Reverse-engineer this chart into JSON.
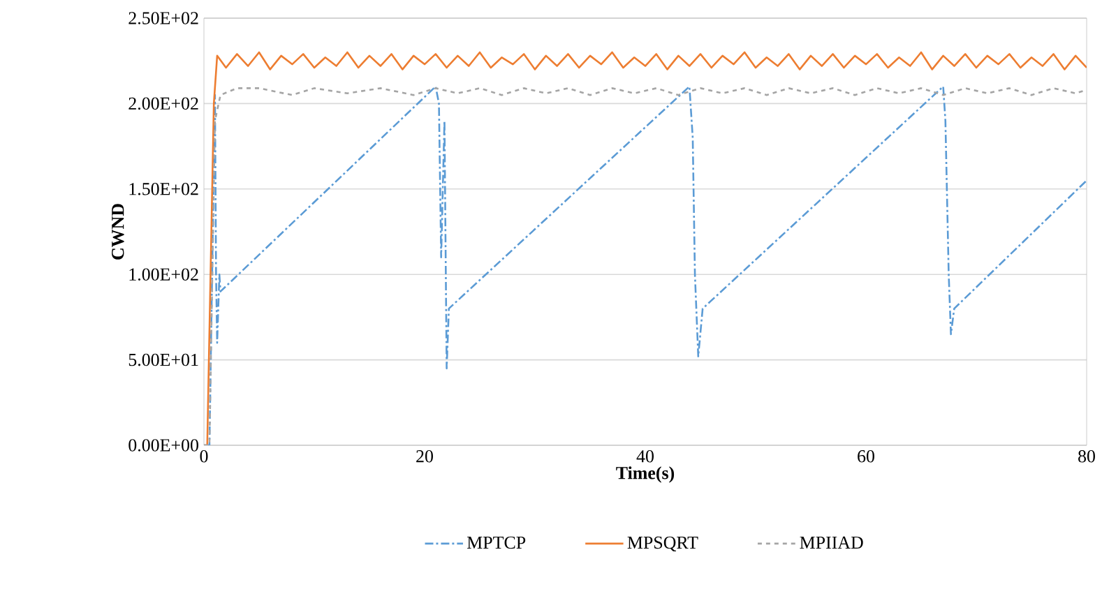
{
  "chart_data": {
    "type": "line",
    "xlabel": "Time(s)",
    "ylabel": "CWND",
    "xlim": [
      0,
      80
    ],
    "xticks": [
      0,
      20,
      40,
      60,
      80
    ],
    "ylim": [
      0,
      250
    ],
    "yticks": [
      {
        "value": 0,
        "label": "0.00E+00"
      },
      {
        "value": 50,
        "label": "5.00E+01"
      },
      {
        "value": 100,
        "label": "1.00E+02"
      },
      {
        "value": 150,
        "label": "1.50E+02"
      },
      {
        "value": 200,
        "label": "2.00E+02"
      },
      {
        "value": 250,
        "label": "2.50E+02"
      }
    ],
    "grid": "y",
    "legend": "bottom",
    "marker": "none",
    "series": [
      {
        "name": "MPTCP",
        "color": "#5b9bd5",
        "line_style": "dashdot",
        "x": [
          0,
          0.5,
          1,
          1.1,
          1.2,
          1.4,
          1.5,
          21,
          21.3,
          21.5,
          21.8,
          22,
          22.2,
          44,
          44.3,
          44.5,
          44.8,
          45.2,
          67,
          67.2,
          67.5,
          67.7,
          68,
          80
        ],
        "values": [
          0,
          0,
          205,
          100,
          60,
          100,
          90,
          210,
          200,
          110,
          190,
          45,
          80,
          210,
          180,
          100,
          52,
          80,
          210,
          190,
          100,
          65,
          80,
          155
        ]
      },
      {
        "name": "MPSQRT",
        "color": "#ed7d31",
        "line_style": "solid",
        "x": [
          0,
          0.3,
          0.9,
          1.2,
          2,
          3,
          4,
          5,
          6,
          7,
          8,
          9,
          10,
          11,
          12,
          13,
          14,
          15,
          16,
          17,
          18,
          19,
          20,
          21,
          22,
          23,
          24,
          25,
          26,
          27,
          28,
          29,
          30,
          31,
          32,
          33,
          34,
          35,
          36,
          37,
          38,
          39,
          40,
          41,
          42,
          43,
          44,
          45,
          46,
          47,
          48,
          49,
          50,
          51,
          52,
          53,
          54,
          55,
          56,
          57,
          58,
          59,
          60,
          61,
          62,
          63,
          64,
          65,
          66,
          67,
          68,
          69,
          70,
          71,
          72,
          73,
          74,
          75,
          76,
          77,
          78,
          79,
          80
        ],
        "values": [
          0,
          0,
          200,
          228,
          221,
          229,
          222,
          230,
          220,
          228,
          223,
          229,
          221,
          227,
          222,
          230,
          221,
          228,
          222,
          229,
          220,
          228,
          223,
          229,
          221,
          228,
          222,
          230,
          221,
          227,
          223,
          229,
          220,
          228,
          222,
          229,
          221,
          228,
          223,
          230,
          221,
          227,
          222,
          229,
          220,
          228,
          222,
          229,
          221,
          228,
          223,
          230,
          221,
          227,
          222,
          229,
          220,
          228,
          222,
          229,
          221,
          228,
          223,
          229,
          221,
          227,
          222,
          230,
          220,
          228,
          222,
          229,
          221,
          228,
          223,
          229,
          221,
          227,
          222,
          229,
          220,
          228,
          221
        ]
      },
      {
        "name": "MPIIAD",
        "color": "#a5a5a5",
        "line_style": "dashed",
        "x": [
          0,
          0.5,
          1,
          1.5,
          3,
          5,
          8,
          10,
          13,
          16,
          19,
          21,
          23,
          25,
          27,
          29,
          31,
          33,
          35,
          37,
          39,
          41,
          43,
          45,
          47,
          49,
          51,
          53,
          55,
          57,
          59,
          61,
          63,
          65,
          67,
          69,
          71,
          73,
          75,
          77,
          79,
          80
        ],
        "values": [
          0,
          0,
          190,
          205,
          209,
          209,
          205,
          209,
          206,
          209,
          205,
          209,
          206,
          209,
          205,
          209,
          206,
          209,
          205,
          209,
          206,
          209,
          205,
          209,
          206,
          209,
          205,
          209,
          206,
          209,
          205,
          209,
          206,
          209,
          205,
          209,
          206,
          209,
          205,
          209,
          206,
          208
        ]
      }
    ]
  }
}
